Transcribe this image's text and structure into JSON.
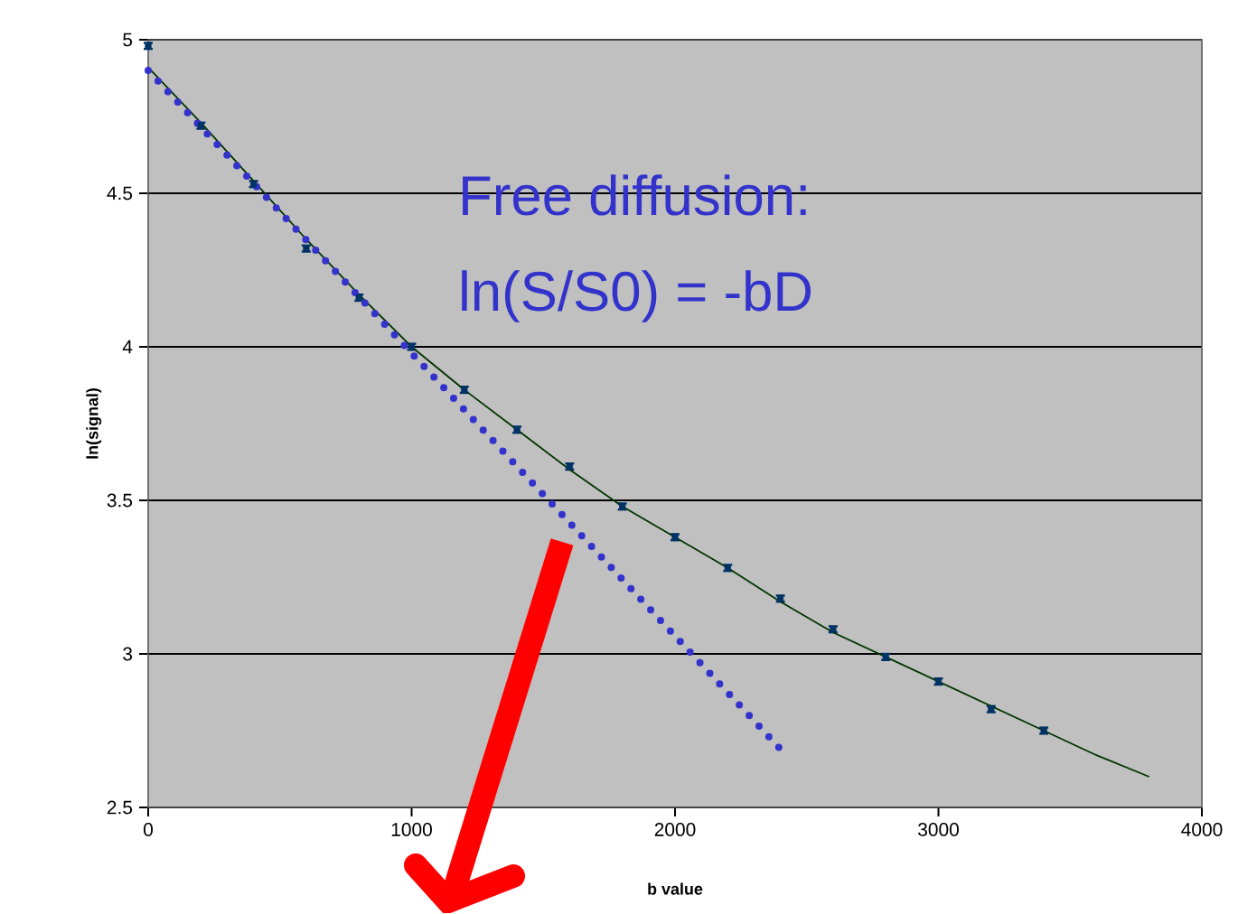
{
  "chart_data": {
    "type": "scatter",
    "xlabel": "b value",
    "ylabel": "ln(signal)",
    "xlim": [
      0,
      4000
    ],
    "ylim": [
      2.5,
      5
    ],
    "xticks": [
      0,
      1000,
      2000,
      3000,
      4000
    ],
    "yticks": [
      2.5,
      3,
      3.5,
      4,
      4.5,
      5
    ],
    "grid": "y",
    "annotations": [
      "Free diffusion:",
      "ln(S/S0) = -bD"
    ],
    "series": [
      {
        "color": "#003366",
        "marker": "square",
        "x": [
          0,
          200,
          400,
          600,
          800,
          1000,
          1200,
          1400,
          1600,
          1800,
          2000,
          2200,
          2400,
          2600,
          2800,
          3000,
          3200,
          3400
        ],
        "values": [
          4.98,
          4.72,
          4.53,
          4.32,
          4.16,
          4.0,
          3.86,
          3.73,
          3.61,
          3.48,
          3.38,
          3.28,
          3.18,
          3.08,
          2.99,
          2.91,
          2.82,
          2.75
        ],
        "errors": [
          0.01,
          0.01,
          0.01,
          0.01,
          0.01,
          0.01,
          0.01,
          0.01,
          0.01,
          0.01,
          0.01,
          0.01,
          0.01,
          0.01,
          0.01,
          0.01,
          0.01,
          0.01
        ]
      },
      {
        "type": "line",
        "color": "#003300",
        "marker": "none",
        "line_style": "solid",
        "x": [
          0,
          200,
          400,
          600,
          800,
          1000,
          1200,
          1400,
          1600,
          1800,
          2000,
          2200,
          2400,
          2600,
          2800,
          3000,
          3200,
          3400,
          3600,
          3800
        ],
        "values": [
          4.91,
          4.73,
          4.54,
          4.35,
          4.17,
          4.0,
          3.86,
          3.73,
          3.6,
          3.48,
          3.38,
          3.28,
          3.17,
          3.07,
          2.99,
          2.91,
          2.83,
          2.75,
          2.67,
          2.6
        ]
      },
      {
        "type": "line",
        "color": "#3333cc",
        "marker": "none",
        "line_style": "dotted",
        "x": [
          0,
          2400
        ],
        "values": [
          4.9,
          2.69
        ]
      }
    ]
  }
}
